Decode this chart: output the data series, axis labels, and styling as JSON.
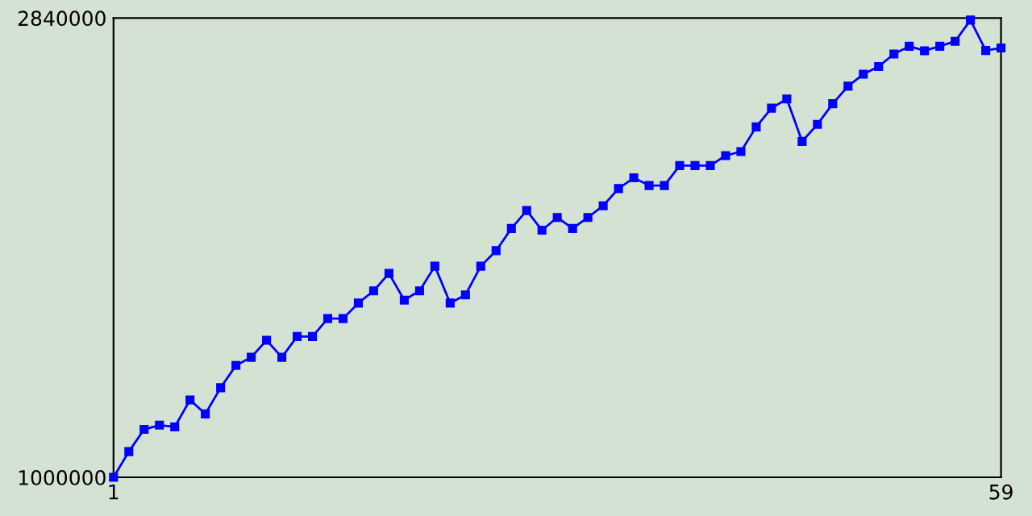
{
  "chart_data": {
    "type": "line",
    "x": [
      1,
      2,
      3,
      4,
      5,
      6,
      7,
      8,
      9,
      10,
      11,
      12,
      13,
      14,
      15,
      16,
      17,
      18,
      19,
      20,
      21,
      22,
      23,
      24,
      25,
      26,
      27,
      28,
      29,
      30,
      31,
      32,
      33,
      34,
      35,
      36,
      37,
      38,
      39,
      40,
      41,
      42,
      43,
      44,
      45,
      46,
      47,
      48,
      49,
      50,
      51,
      52,
      53,
      54,
      55,
      56,
      57,
      58,
      59
    ],
    "series": [
      {
        "color": "#0000ff",
        "values": [
          1000000,
          1103000,
          1192000,
          1209000,
          1202000,
          1310000,
          1254000,
          1359000,
          1448000,
          1481000,
          1549000,
          1481000,
          1564000,
          1564000,
          1636000,
          1636000,
          1698000,
          1747000,
          1817000,
          1710000,
          1747000,
          1846000,
          1698000,
          1731000,
          1846000,
          1908000,
          1997000,
          2069000,
          1990000,
          2041000,
          1997000,
          2041000,
          2088000,
          2157000,
          2200000,
          2169000,
          2169000,
          2249000,
          2249000,
          2249000,
          2289000,
          2305000,
          2404000,
          2479000,
          2516000,
          2346000,
          2414000,
          2497000,
          2567000,
          2615000,
          2646000,
          2696000,
          2727000,
          2709000,
          2727000,
          2747000,
          2832000,
          2710000,
          2720000
        ]
      }
    ],
    "xlim": [
      1,
      59
    ],
    "ylim": [
      1000000,
      2840000
    ],
    "xticks": [
      1,
      59
    ],
    "yticks": [
      1000000,
      2840000
    ],
    "marker": "square",
    "line_style": "solid",
    "grid": false,
    "legend": false
  }
}
